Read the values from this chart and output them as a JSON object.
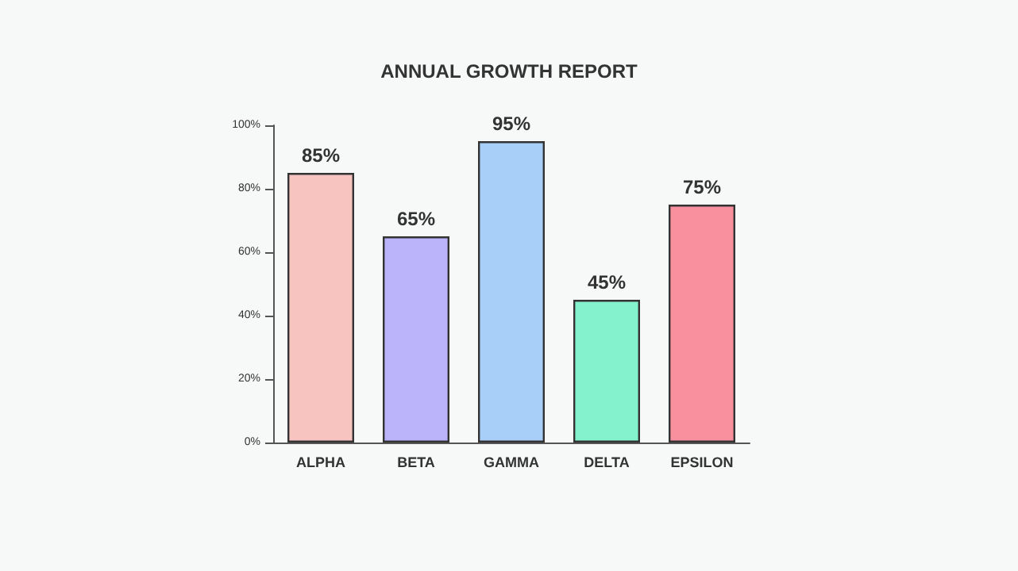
{
  "chart_data": {
    "type": "bar",
    "title": "ANNUAL GROWTH REPORT",
    "categories": [
      "ALPHA",
      "BETA",
      "GAMMA",
      "DELTA",
      "EPSILON"
    ],
    "values": [
      85,
      65,
      95,
      45,
      75
    ],
    "colors": [
      "#f8c4c0",
      "#bcb4fa",
      "#a8cff8",
      "#84f2cc",
      "#f8909e"
    ],
    "value_labels": [
      "85%",
      "65%",
      "95%",
      "45%",
      "75%"
    ],
    "ylim": [
      0,
      100
    ],
    "yticks": [
      {
        "value": 0,
        "label": "0%"
      },
      {
        "value": 20,
        "label": "20%"
      },
      {
        "value": 40,
        "label": "40%"
      },
      {
        "value": 60,
        "label": "60%"
      },
      {
        "value": 80,
        "label": "80%"
      },
      {
        "value": 100,
        "label": "100%"
      }
    ],
    "grid": false
  }
}
